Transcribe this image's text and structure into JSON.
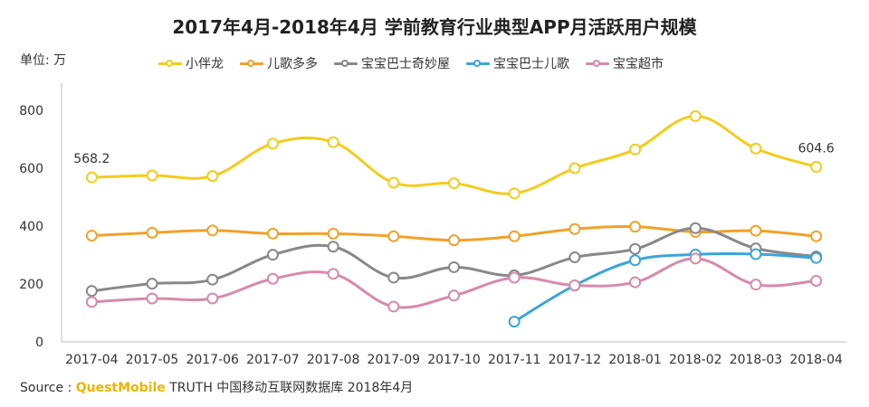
{
  "title": "2017年4月-2018年4月 学前教育行业典型APP月活跃用户规模",
  "unit": "单位: 万",
  "source": {
    "prefix": "Source :",
    "brand": "QuestMobile",
    "rest": "TRUTH 中国移动互联网数据库 2018年4月"
  },
  "chart_data": {
    "type": "line",
    "categories": [
      "2017-04",
      "2017-05",
      "2017-06",
      "2017-07",
      "2017-08",
      "2017-09",
      "2017-10",
      "2017-11",
      "2017-12",
      "2018-01",
      "2018-02",
      "2018-03",
      "2018-04"
    ],
    "ylim": [
      0,
      800
    ],
    "yticks": [
      0,
      200,
      400,
      600,
      800
    ],
    "grid": false,
    "legend_position": "top",
    "series": [
      {
        "name": "小伴龙",
        "color": "#f2cd1c",
        "values": [
          568.2,
          575,
          573,
          685,
          690,
          550,
          548,
          513,
          600,
          665,
          780,
          668,
          604.6
        ]
      },
      {
        "name": "儿歌多多",
        "color": "#f0a22a",
        "values": [
          367,
          377,
          385,
          374,
          374,
          365,
          351,
          365,
          390,
          398,
          380,
          384,
          365
        ]
      },
      {
        "name": "宝宝巴士奇妙屋",
        "color": "#888888",
        "values": [
          176,
          201,
          215,
          301,
          329,
          222,
          258,
          230,
          292,
          321,
          393,
          323,
          295
        ]
      },
      {
        "name": "宝宝巴士儿歌",
        "color": "#3ba5d6",
        "values": [
          null,
          null,
          null,
          null,
          null,
          null,
          null,
          70,
          195,
          282,
          302,
          303,
          290
        ]
      },
      {
        "name": "宝宝超市",
        "color": "#d78aaa",
        "values": [
          138,
          150,
          150,
          218,
          235,
          122,
          160,
          222,
          195,
          206,
          288,
          198,
          211
        ]
      }
    ],
    "data_labels": [
      {
        "series": "小伴龙",
        "index": 0,
        "text": "568.2"
      },
      {
        "series": "小伴龙",
        "index": 12,
        "text": "604.6"
      }
    ]
  }
}
